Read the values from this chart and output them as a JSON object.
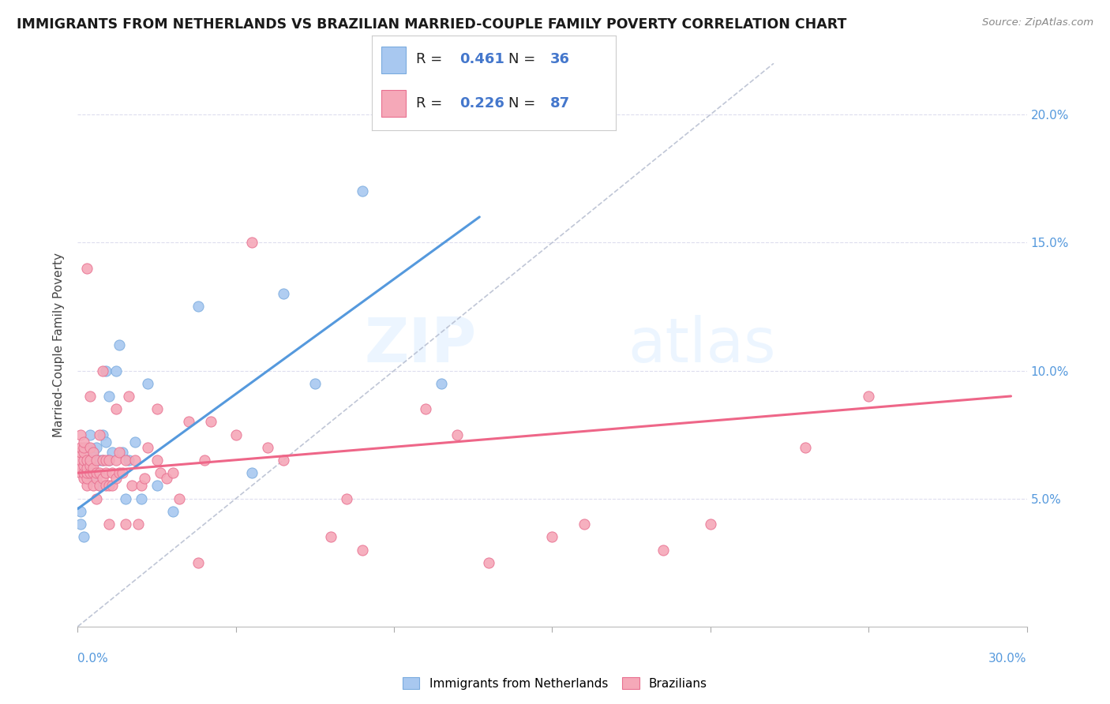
{
  "title": "IMMIGRANTS FROM NETHERLANDS VS BRAZILIAN MARRIED-COUPLE FAMILY POVERTY CORRELATION CHART",
  "source": "Source: ZipAtlas.com",
  "ylabel": "Married-Couple Family Poverty",
  "xlim": [
    0.0,
    0.3
  ],
  "ylim": [
    0.0,
    0.22
  ],
  "legend1_R": "0.461",
  "legend1_N": "36",
  "legend2_R": "0.226",
  "legend2_N": "87",
  "netherlands_color": "#a8c8f0",
  "netherlands_edge": "#7aabde",
  "brazil_color": "#f5a8b8",
  "brazil_edge": "#e87090",
  "netherlands_trend_color": "#5599dd",
  "brazil_trend_color": "#ee6688",
  "reference_line_color": "#b0b8cc",
  "watermark_zip": "ZIP",
  "watermark_atlas": "atlas",
  "nl_trend_x": [
    0.0,
    0.127
  ],
  "nl_trend_y": [
    0.046,
    0.16
  ],
  "br_trend_x": [
    0.0,
    0.295
  ],
  "br_trend_y": [
    0.06,
    0.09
  ],
  "netherlands_x": [
    0.001,
    0.001,
    0.002,
    0.003,
    0.003,
    0.004,
    0.004,
    0.005,
    0.005,
    0.006,
    0.006,
    0.007,
    0.007,
    0.008,
    0.008,
    0.009,
    0.009,
    0.01,
    0.01,
    0.011,
    0.012,
    0.013,
    0.014,
    0.015,
    0.016,
    0.018,
    0.02,
    0.022,
    0.025,
    0.03,
    0.038,
    0.055,
    0.065,
    0.075,
    0.09,
    0.115
  ],
  "netherlands_y": [
    0.04,
    0.045,
    0.035,
    0.06,
    0.07,
    0.065,
    0.075,
    0.058,
    0.068,
    0.06,
    0.07,
    0.055,
    0.065,
    0.065,
    0.075,
    0.072,
    0.1,
    0.065,
    0.09,
    0.068,
    0.1,
    0.11,
    0.068,
    0.05,
    0.065,
    0.072,
    0.05,
    0.095,
    0.055,
    0.045,
    0.125,
    0.06,
    0.13,
    0.095,
    0.17,
    0.095
  ],
  "brazil_x": [
    0.001,
    0.001,
    0.001,
    0.001,
    0.001,
    0.001,
    0.002,
    0.002,
    0.002,
    0.002,
    0.002,
    0.002,
    0.002,
    0.003,
    0.003,
    0.003,
    0.003,
    0.003,
    0.003,
    0.004,
    0.004,
    0.004,
    0.004,
    0.004,
    0.005,
    0.005,
    0.005,
    0.005,
    0.006,
    0.006,
    0.006,
    0.006,
    0.007,
    0.007,
    0.007,
    0.008,
    0.008,
    0.008,
    0.009,
    0.009,
    0.009,
    0.01,
    0.01,
    0.01,
    0.011,
    0.011,
    0.012,
    0.012,
    0.012,
    0.013,
    0.013,
    0.014,
    0.015,
    0.015,
    0.016,
    0.017,
    0.018,
    0.019,
    0.02,
    0.021,
    0.022,
    0.025,
    0.025,
    0.026,
    0.028,
    0.03,
    0.032,
    0.035,
    0.038,
    0.04,
    0.042,
    0.05,
    0.055,
    0.06,
    0.065,
    0.08,
    0.085,
    0.09,
    0.11,
    0.12,
    0.13,
    0.15,
    0.16,
    0.185,
    0.2,
    0.23,
    0.25
  ],
  "brazil_y": [
    0.06,
    0.062,
    0.065,
    0.068,
    0.07,
    0.075,
    0.058,
    0.06,
    0.063,
    0.065,
    0.068,
    0.07,
    0.072,
    0.055,
    0.058,
    0.06,
    0.062,
    0.065,
    0.14,
    0.06,
    0.063,
    0.065,
    0.07,
    0.09,
    0.055,
    0.06,
    0.062,
    0.068,
    0.05,
    0.058,
    0.06,
    0.065,
    0.055,
    0.06,
    0.075,
    0.058,
    0.065,
    0.1,
    0.055,
    0.06,
    0.065,
    0.04,
    0.055,
    0.065,
    0.055,
    0.06,
    0.058,
    0.065,
    0.085,
    0.06,
    0.068,
    0.06,
    0.04,
    0.065,
    0.09,
    0.055,
    0.065,
    0.04,
    0.055,
    0.058,
    0.07,
    0.065,
    0.085,
    0.06,
    0.058,
    0.06,
    0.05,
    0.08,
    0.025,
    0.065,
    0.08,
    0.075,
    0.15,
    0.07,
    0.065,
    0.035,
    0.05,
    0.03,
    0.085,
    0.075,
    0.025,
    0.035,
    0.04,
    0.03,
    0.04,
    0.07,
    0.09
  ]
}
